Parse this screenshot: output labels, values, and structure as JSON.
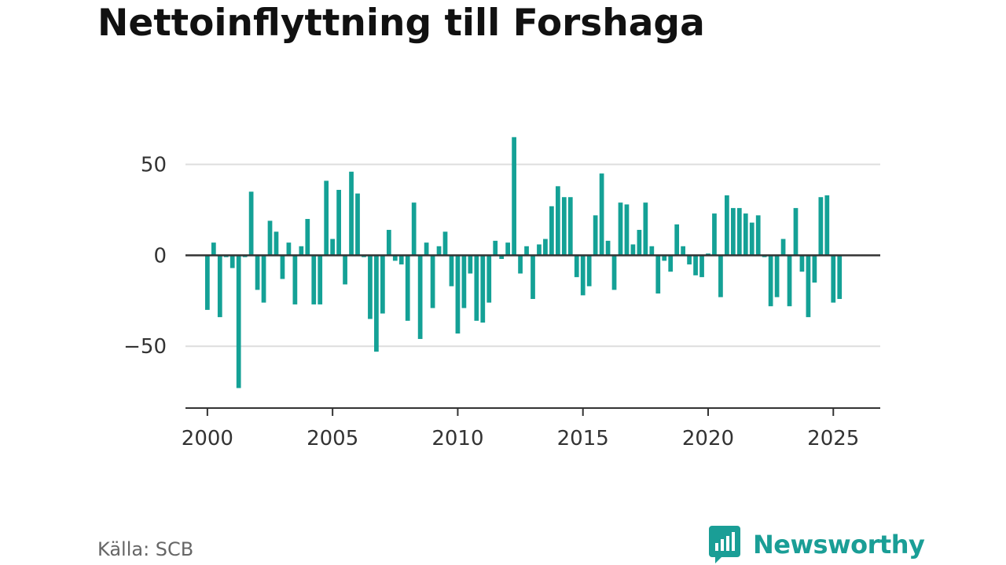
{
  "title": "Nettoinflyttning till Forshaga",
  "source": "Källa: SCB",
  "brand": {
    "name": "Newsworthy",
    "icon": "newsworthy-logo-icon",
    "color": "#1a9e96"
  },
  "colors": {
    "bar": "#14a196",
    "grid": "#dddddd",
    "zero_line": "#333333",
    "axis": "#333333"
  },
  "chart_data": {
    "type": "bar",
    "frequency": "quarterly",
    "x_start": "2000Q1",
    "x_ticks": [
      2000,
      2005,
      2010,
      2015,
      2020,
      2025
    ],
    "y_ticks": [
      -50,
      0,
      50
    ],
    "y_tick_labels": [
      "−50",
      "0",
      "50"
    ],
    "xlim": [
      1999.125,
      2026.875
    ],
    "ylim": [
      -84,
      80
    ],
    "grid": true,
    "legend": "none",
    "values": [
      -30,
      7,
      -34,
      -1,
      -7,
      -73,
      -1,
      35,
      -19,
      -26,
      19,
      13,
      -13,
      7,
      -27,
      5,
      20,
      -27,
      -27,
      41,
      9,
      36,
      -16,
      46,
      34,
      -1,
      -35,
      -53,
      -32,
      14,
      -3,
      -5,
      -36,
      29,
      -46,
      7,
      -29,
      5,
      13,
      -17,
      -43,
      -29,
      -10,
      -36,
      -37,
      -26,
      8,
      -2,
      7,
      65,
      -10,
      5,
      -24,
      6,
      9,
      27,
      38,
      32,
      32,
      -12,
      -22,
      -17,
      22,
      45,
      8,
      -19,
      29,
      28,
      6,
      14,
      29,
      5,
      -21,
      -3,
      -9,
      17,
      5,
      -5,
      -11,
      -12,
      1,
      23,
      -23,
      33,
      26,
      26,
      23,
      18,
      22,
      -1,
      -28,
      -23,
      9,
      -28,
      26,
      -9,
      -34,
      -15,
      32,
      33,
      -26,
      -24
    ]
  }
}
